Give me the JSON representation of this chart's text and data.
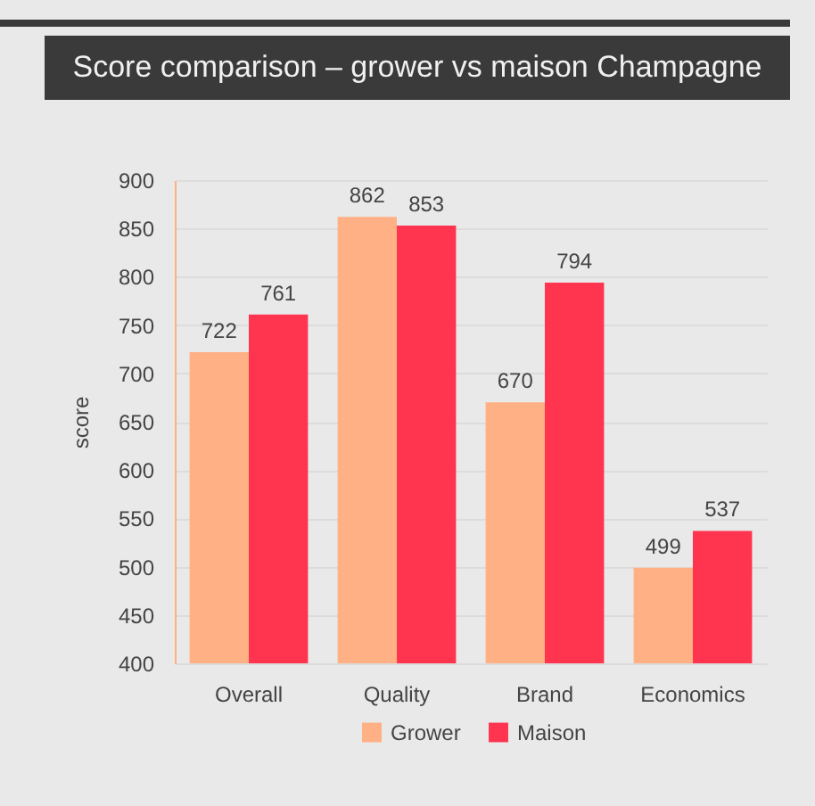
{
  "chart_data": {
    "type": "bar",
    "title": "Score comparison – grower vs maison Champagne",
    "ylabel": "score",
    "categories": [
      "Overall",
      "Quality",
      "Brand",
      "Economics"
    ],
    "series": [
      {
        "name": "Grower",
        "color": "#ffb084",
        "values": [
          722,
          862,
          670,
          499
        ]
      },
      {
        "name": "Maison",
        "color": "#ff344f",
        "values": [
          761,
          853,
          794,
          537
        ]
      }
    ],
    "ylim": [
      400,
      900
    ],
    "yticks": [
      400,
      450,
      500,
      550,
      600,
      650,
      700,
      750,
      800,
      850,
      900
    ],
    "grid": "y",
    "legend": "bottom",
    "data_labels": true
  }
}
